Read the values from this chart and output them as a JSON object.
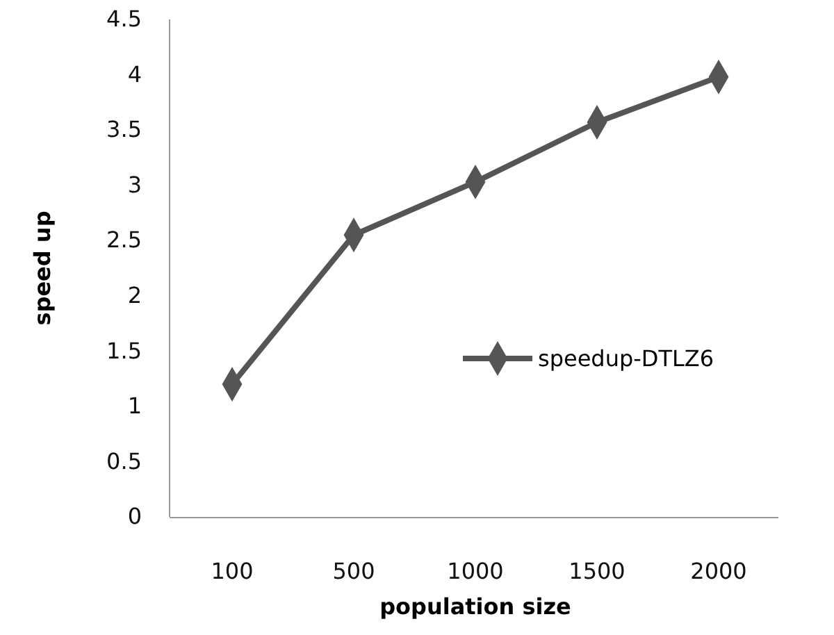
{
  "chart_data": {
    "type": "line",
    "xlabel": "population size",
    "ylabel": "speed up",
    "categories": [
      "100",
      "500",
      "1000",
      "1500",
      "2000"
    ],
    "series": [
      {
        "name": "speedup-DTLZ6",
        "color": "#555555",
        "values": [
          1.2,
          2.55,
          3.03,
          3.57,
          3.98
        ]
      }
    ],
    "ylim": [
      0,
      4.5
    ],
    "yticks": [
      0,
      0.5,
      1,
      1.5,
      2,
      2.5,
      3,
      3.5,
      4,
      4.5
    ],
    "grid": false,
    "legend": "right",
    "marker": "diamond",
    "line_style": "solid"
  }
}
